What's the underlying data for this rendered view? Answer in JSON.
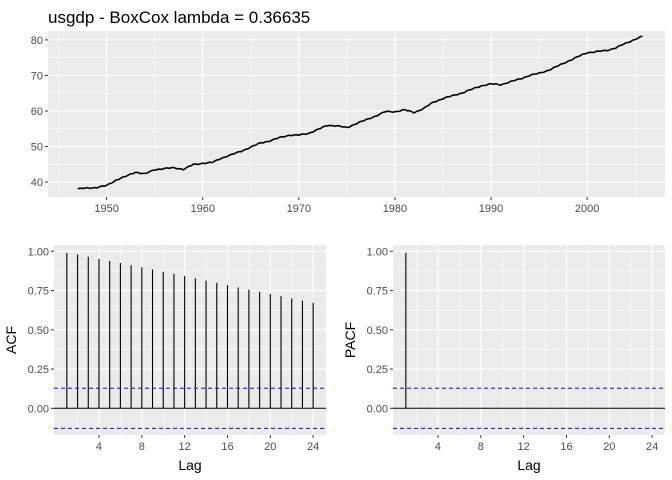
{
  "chart_data": [
    {
      "type": "line",
      "title": "usgdp - BoxCox lambda =  0.36635",
      "xlabel": "",
      "ylabel": "",
      "xlim": [
        1943.9,
        2008.1
      ],
      "ylim": [
        35.8,
        82.5
      ],
      "x_ticks": [
        1950,
        1960,
        1970,
        1980,
        1990,
        2000
      ],
      "y_ticks": [
        40,
        50,
        60,
        70,
        80
      ],
      "x_tick_labels": [
        "1950",
        "1960",
        "1970",
        "1980",
        "1990",
        "2000"
      ],
      "y_tick_labels": [
        "40",
        "50",
        "60",
        "70",
        "80"
      ],
      "grid": true,
      "frequency": "quarterly",
      "x_start": 1947.0,
      "x_end": 2005.75,
      "anchors": [
        [
          1947.0,
          38.1
        ],
        [
          1948.0,
          38.3
        ],
        [
          1949.0,
          38.5
        ],
        [
          1950.0,
          39.0
        ],
        [
          1951.0,
          40.6
        ],
        [
          1952.0,
          41.6
        ],
        [
          1953.0,
          42.8
        ],
        [
          1954.0,
          42.3
        ],
        [
          1955.0,
          43.5
        ],
        [
          1956.0,
          43.8
        ],
        [
          1957.0,
          44.0
        ],
        [
          1958.0,
          43.6
        ],
        [
          1959.0,
          44.9
        ],
        [
          1960.0,
          45.3
        ],
        [
          1961.0,
          45.5
        ],
        [
          1962.0,
          46.8
        ],
        [
          1963.0,
          47.7
        ],
        [
          1964.0,
          48.7
        ],
        [
          1965.0,
          49.8
        ],
        [
          1966.0,
          51.0
        ],
        [
          1967.0,
          51.6
        ],
        [
          1968.0,
          52.5
        ],
        [
          1969.0,
          53.2
        ],
        [
          1970.0,
          53.2
        ],
        [
          1971.0,
          53.7
        ],
        [
          1972.0,
          54.8
        ],
        [
          1973.0,
          56.0
        ],
        [
          1974.0,
          55.8
        ],
        [
          1975.0,
          55.3
        ],
        [
          1976.0,
          56.5
        ],
        [
          1977.0,
          57.5
        ],
        [
          1978.0,
          58.6
        ],
        [
          1979.0,
          59.8
        ],
        [
          1980.0,
          59.8
        ],
        [
          1981.0,
          60.3
        ],
        [
          1982.0,
          59.6
        ],
        [
          1983.0,
          60.7
        ],
        [
          1984.0,
          62.5
        ],
        [
          1985.0,
          63.5
        ],
        [
          1986.0,
          64.3
        ],
        [
          1987.0,
          65.1
        ],
        [
          1988.0,
          66.1
        ],
        [
          1989.0,
          67.1
        ],
        [
          1990.0,
          67.6
        ],
        [
          1991.0,
          67.4
        ],
        [
          1992.0,
          68.2
        ],
        [
          1993.0,
          69.0
        ],
        [
          1994.0,
          70.0
        ],
        [
          1995.0,
          70.6
        ],
        [
          1996.0,
          71.5
        ],
        [
          1997.0,
          72.7
        ],
        [
          1998.0,
          74.0
        ],
        [
          1999.0,
          75.2
        ],
        [
          2000.0,
          76.4
        ],
        [
          2001.0,
          76.7
        ],
        [
          2002.0,
          77.0
        ],
        [
          2003.0,
          77.8
        ],
        [
          2004.0,
          79.0
        ],
        [
          2005.0,
          80.2
        ],
        [
          2005.75,
          81.0
        ]
      ]
    },
    {
      "type": "bar",
      "xlabel": "Lag",
      "ylabel": "ACF",
      "xlim": [
        -0.2,
        25.2
      ],
      "ylim": [
        -0.17,
        1.04
      ],
      "x_ticks": [
        4,
        8,
        12,
        16,
        20,
        24
      ],
      "y_ticks": [
        0.0,
        0.25,
        0.5,
        0.75,
        1.0
      ],
      "x_tick_labels": [
        "4",
        "8",
        "12",
        "16",
        "20",
        "24"
      ],
      "y_tick_labels": [
        "0.00",
        "0.25",
        "0.50",
        "0.75",
        "1.00"
      ],
      "lags": [
        1,
        2,
        3,
        4,
        5,
        6,
        7,
        8,
        9,
        10,
        11,
        12,
        13,
        14,
        15,
        16,
        17,
        18,
        19,
        20,
        21,
        22,
        23,
        24
      ],
      "values": [
        0.99,
        0.98,
        0.965,
        0.952,
        0.938,
        0.925,
        0.911,
        0.898,
        0.884,
        0.87,
        0.856,
        0.842,
        0.828,
        0.813,
        0.799,
        0.785,
        0.77,
        0.756,
        0.742,
        0.728,
        0.714,
        0.7,
        0.686,
        0.672
      ],
      "ci": 0.128,
      "grid": true
    },
    {
      "type": "bar",
      "xlabel": "Lag",
      "ylabel": "PACF",
      "xlim": [
        -0.2,
        25.2
      ],
      "ylim": [
        -0.17,
        1.04
      ],
      "x_ticks": [
        4,
        8,
        12,
        16,
        20,
        24
      ],
      "y_ticks": [
        0.0,
        0.25,
        0.5,
        0.75,
        1.0
      ],
      "x_tick_labels": [
        "4",
        "8",
        "12",
        "16",
        "20",
        "24"
      ],
      "y_tick_labels": [
        "0.00",
        "0.25",
        "0.50",
        "0.75",
        "1.00"
      ],
      "lags": [
        1,
        2,
        3,
        4,
        5,
        6,
        7,
        8,
        9,
        10,
        11,
        12,
        13,
        14,
        15,
        16,
        17,
        18,
        19,
        20,
        21,
        22,
        23,
        24
      ],
      "values": [
        0.99,
        0.0,
        0.004,
        -0.002,
        0.002,
        0.0,
        -0.002,
        0.0,
        0.002,
        -0.001,
        0.0,
        0.0,
        0.003,
        -0.002,
        0.0,
        0.0,
        0.0,
        0.0,
        0.0,
        0.002,
        0.0,
        0.003,
        0.0,
        0.0
      ],
      "ci": 0.128,
      "grid": true
    }
  ],
  "colors": {
    "panel_bg": "#ebebeb",
    "grid_major": "#ffffff",
    "line": "#000000",
    "ci_line": "#0000ff",
    "tick_text": "#4d4d4d"
  }
}
